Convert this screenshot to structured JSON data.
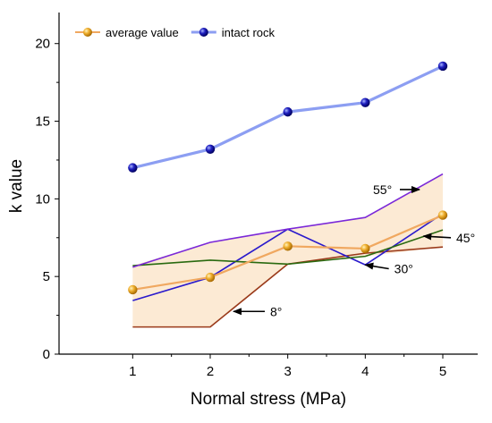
{
  "chart_data": {
    "type": "line",
    "xlabel": "Normal stress (MPa)",
    "ylabel": "k value",
    "x": [
      1,
      2,
      3,
      4,
      5
    ],
    "xlim": [
      0.05,
      5.45
    ],
    "ylim": [
      0,
      22
    ],
    "xticks": [
      1,
      2,
      3,
      4,
      5
    ],
    "yticks": [
      0,
      5,
      10,
      15,
      20
    ],
    "legend_position": "top-left",
    "band": {
      "lower": [
        1.75,
        1.75,
        5.8,
        6.3,
        6.9
      ],
      "upper": [
        5.7,
        7.2,
        8.05,
        8.8,
        11.6
      ],
      "color": "#fbe6cc"
    },
    "series": [
      {
        "name": "average value",
        "values": [
          4.15,
          4.95,
          6.95,
          6.8,
          8.95
        ],
        "color": "#f0a860",
        "marker": "circle",
        "marker_color": "#e8a020",
        "legend": true
      },
      {
        "name": "intact rock",
        "values": [
          12.0,
          13.2,
          15.6,
          16.2,
          18.55
        ],
        "color": "#8c9ef2",
        "marker": "circle",
        "marker_color": "#1a1aa8",
        "legend": true
      },
      {
        "values": [
          1.75,
          1.75,
          5.8,
          6.5,
          6.9
        ],
        "color": "#9a3a1a",
        "marker": "none",
        "legend": false
      },
      {
        "values": [
          3.45,
          4.95,
          8.05,
          5.75,
          9.05
        ],
        "color": "#2a1acc",
        "marker": "none",
        "legend": false
      },
      {
        "values": [
          5.7,
          6.05,
          5.8,
          6.3,
          8.0
        ],
        "color": "#2a6a10",
        "marker": "none",
        "legend": false
      },
      {
        "values": [
          5.6,
          7.2,
          8.05,
          8.8,
          11.6
        ],
        "color": "#7a28d8",
        "marker": "none",
        "legend": false
      }
    ],
    "annotations": [
      {
        "text": "8°",
        "target": [
          2.3,
          2.75
        ],
        "label_at": [
          2.75,
          2.75
        ]
      },
      {
        "text": "30°",
        "target": [
          4.0,
          5.75
        ],
        "label_at": [
          4.35,
          5.5
        ]
      },
      {
        "text": "45°",
        "target": [
          4.75,
          7.6
        ],
        "label_at": [
          5.15,
          7.5
        ]
      },
      {
        "text": "55°",
        "target": [
          4.7,
          10.6
        ],
        "label_at": [
          4.1,
          10.6
        ]
      }
    ]
  }
}
